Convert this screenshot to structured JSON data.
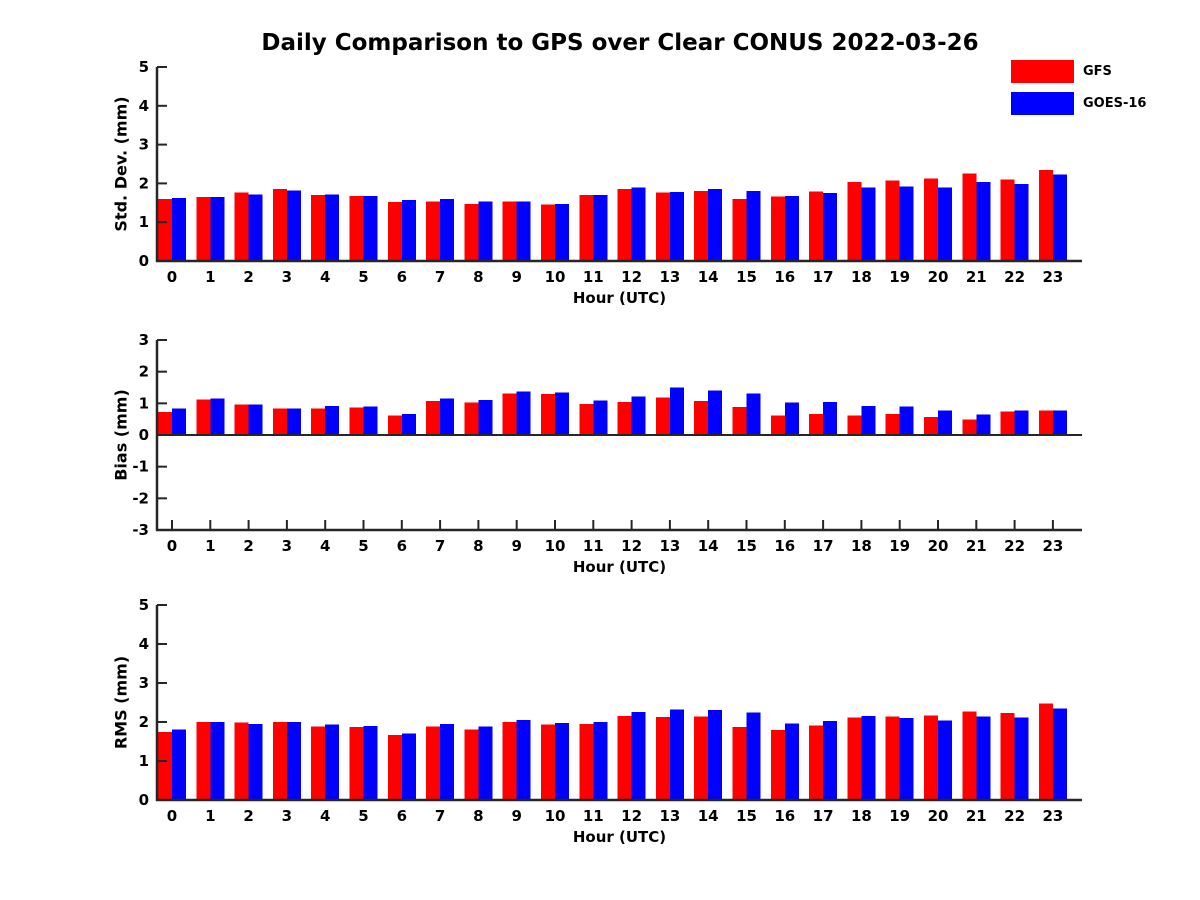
{
  "title": "Daily Comparison to GPS over Clear CONUS 2022-03-26",
  "legend": {
    "position": "top-right",
    "items": [
      {
        "label": "GFS",
        "color": "#ff0000"
      },
      {
        "label": "GOES-16",
        "color": "#0000ff"
      }
    ]
  },
  "chart_data": [
    {
      "type": "bar",
      "name": "std-dev",
      "ylabel": "Std. Dev. (mm)",
      "xlabel": "Hour (UTC)",
      "ylim": [
        0,
        5
      ],
      "yticks": [
        0,
        1,
        2,
        3,
        4,
        5
      ],
      "grid": false,
      "categories": [
        "0",
        "1",
        "2",
        "3",
        "4",
        "5",
        "6",
        "7",
        "8",
        "9",
        "10",
        "11",
        "12",
        "13",
        "14",
        "15",
        "16",
        "17",
        "18",
        "19",
        "20",
        "21",
        "22",
        "23"
      ],
      "series": [
        {
          "name": "GFS",
          "color": "#ff0000",
          "values": [
            1.6,
            1.65,
            1.76,
            1.86,
            1.7,
            1.68,
            1.52,
            1.53,
            1.47,
            1.53,
            1.45,
            1.7,
            1.86,
            1.76,
            1.8,
            1.6,
            1.66,
            1.79,
            2.03,
            2.08,
            2.12,
            2.25,
            2.1,
            2.35
          ]
        },
        {
          "name": "GOES-16",
          "color": "#0000ff",
          "values": [
            1.62,
            1.65,
            1.72,
            1.82,
            1.72,
            1.67,
            1.57,
            1.6,
            1.53,
            1.53,
            1.47,
            1.7,
            1.9,
            1.78,
            1.85,
            1.81,
            1.67,
            1.75,
            1.9,
            1.92,
            1.9,
            2.04,
            1.98,
            2.23
          ]
        }
      ]
    },
    {
      "type": "bar",
      "name": "bias",
      "ylabel": "Bias (mm)",
      "xlabel": "Hour (UTC)",
      "ylim": [
        -3,
        3
      ],
      "yticks": [
        -3,
        -2,
        -1,
        0,
        1,
        2,
        3
      ],
      "grid": false,
      "categories": [
        "0",
        "1",
        "2",
        "3",
        "4",
        "5",
        "6",
        "7",
        "8",
        "9",
        "10",
        "11",
        "12",
        "13",
        "14",
        "15",
        "16",
        "17",
        "18",
        "19",
        "20",
        "21",
        "22",
        "23"
      ],
      "series": [
        {
          "name": "GFS",
          "color": "#ff0000",
          "values": [
            0.72,
            1.12,
            0.97,
            0.84,
            0.84,
            0.87,
            0.62,
            1.07,
            1.03,
            1.31,
            1.29,
            0.98,
            1.05,
            1.18,
            1.07,
            0.88,
            0.62,
            0.66,
            0.62,
            0.66,
            0.57,
            0.49,
            0.75,
            0.78
          ]
        },
        {
          "name": "GOES-16",
          "color": "#0000ff",
          "values": [
            0.83,
            1.15,
            0.97,
            0.84,
            0.91,
            0.9,
            0.67,
            1.15,
            1.1,
            1.37,
            1.34,
            1.09,
            1.21,
            1.5,
            1.4,
            1.31,
            1.02,
            1.05,
            0.92,
            0.9,
            0.78,
            0.65,
            0.78,
            0.78
          ]
        }
      ]
    },
    {
      "type": "bar",
      "name": "rms",
      "ylabel": "RMS (mm)",
      "xlabel": "Hour (UTC)",
      "ylim": [
        0,
        5
      ],
      "yticks": [
        0,
        1,
        2,
        3,
        4,
        5
      ],
      "grid": false,
      "categories": [
        "0",
        "1",
        "2",
        "3",
        "4",
        "5",
        "6",
        "7",
        "8",
        "9",
        "10",
        "11",
        "12",
        "13",
        "14",
        "15",
        "16",
        "17",
        "18",
        "19",
        "20",
        "21",
        "22",
        "23"
      ],
      "series": [
        {
          "name": "GFS",
          "color": "#ff0000",
          "values": [
            1.75,
            2.0,
            1.99,
            2.0,
            1.89,
            1.87,
            1.67,
            1.89,
            1.81,
            2.0,
            1.93,
            1.95,
            2.16,
            2.13,
            2.14,
            1.87,
            1.79,
            1.91,
            2.11,
            2.14,
            2.17,
            2.27,
            2.23,
            2.48
          ]
        },
        {
          "name": "GOES-16",
          "color": "#0000ff",
          "values": [
            1.81,
            2.0,
            1.95,
            2.0,
            1.93,
            1.9,
            1.71,
            1.95,
            1.89,
            2.05,
            1.97,
            2.0,
            2.26,
            2.32,
            2.31,
            2.25,
            1.96,
            2.03,
            2.15,
            2.1,
            2.04,
            2.14,
            2.12,
            2.35
          ]
        }
      ]
    }
  ]
}
